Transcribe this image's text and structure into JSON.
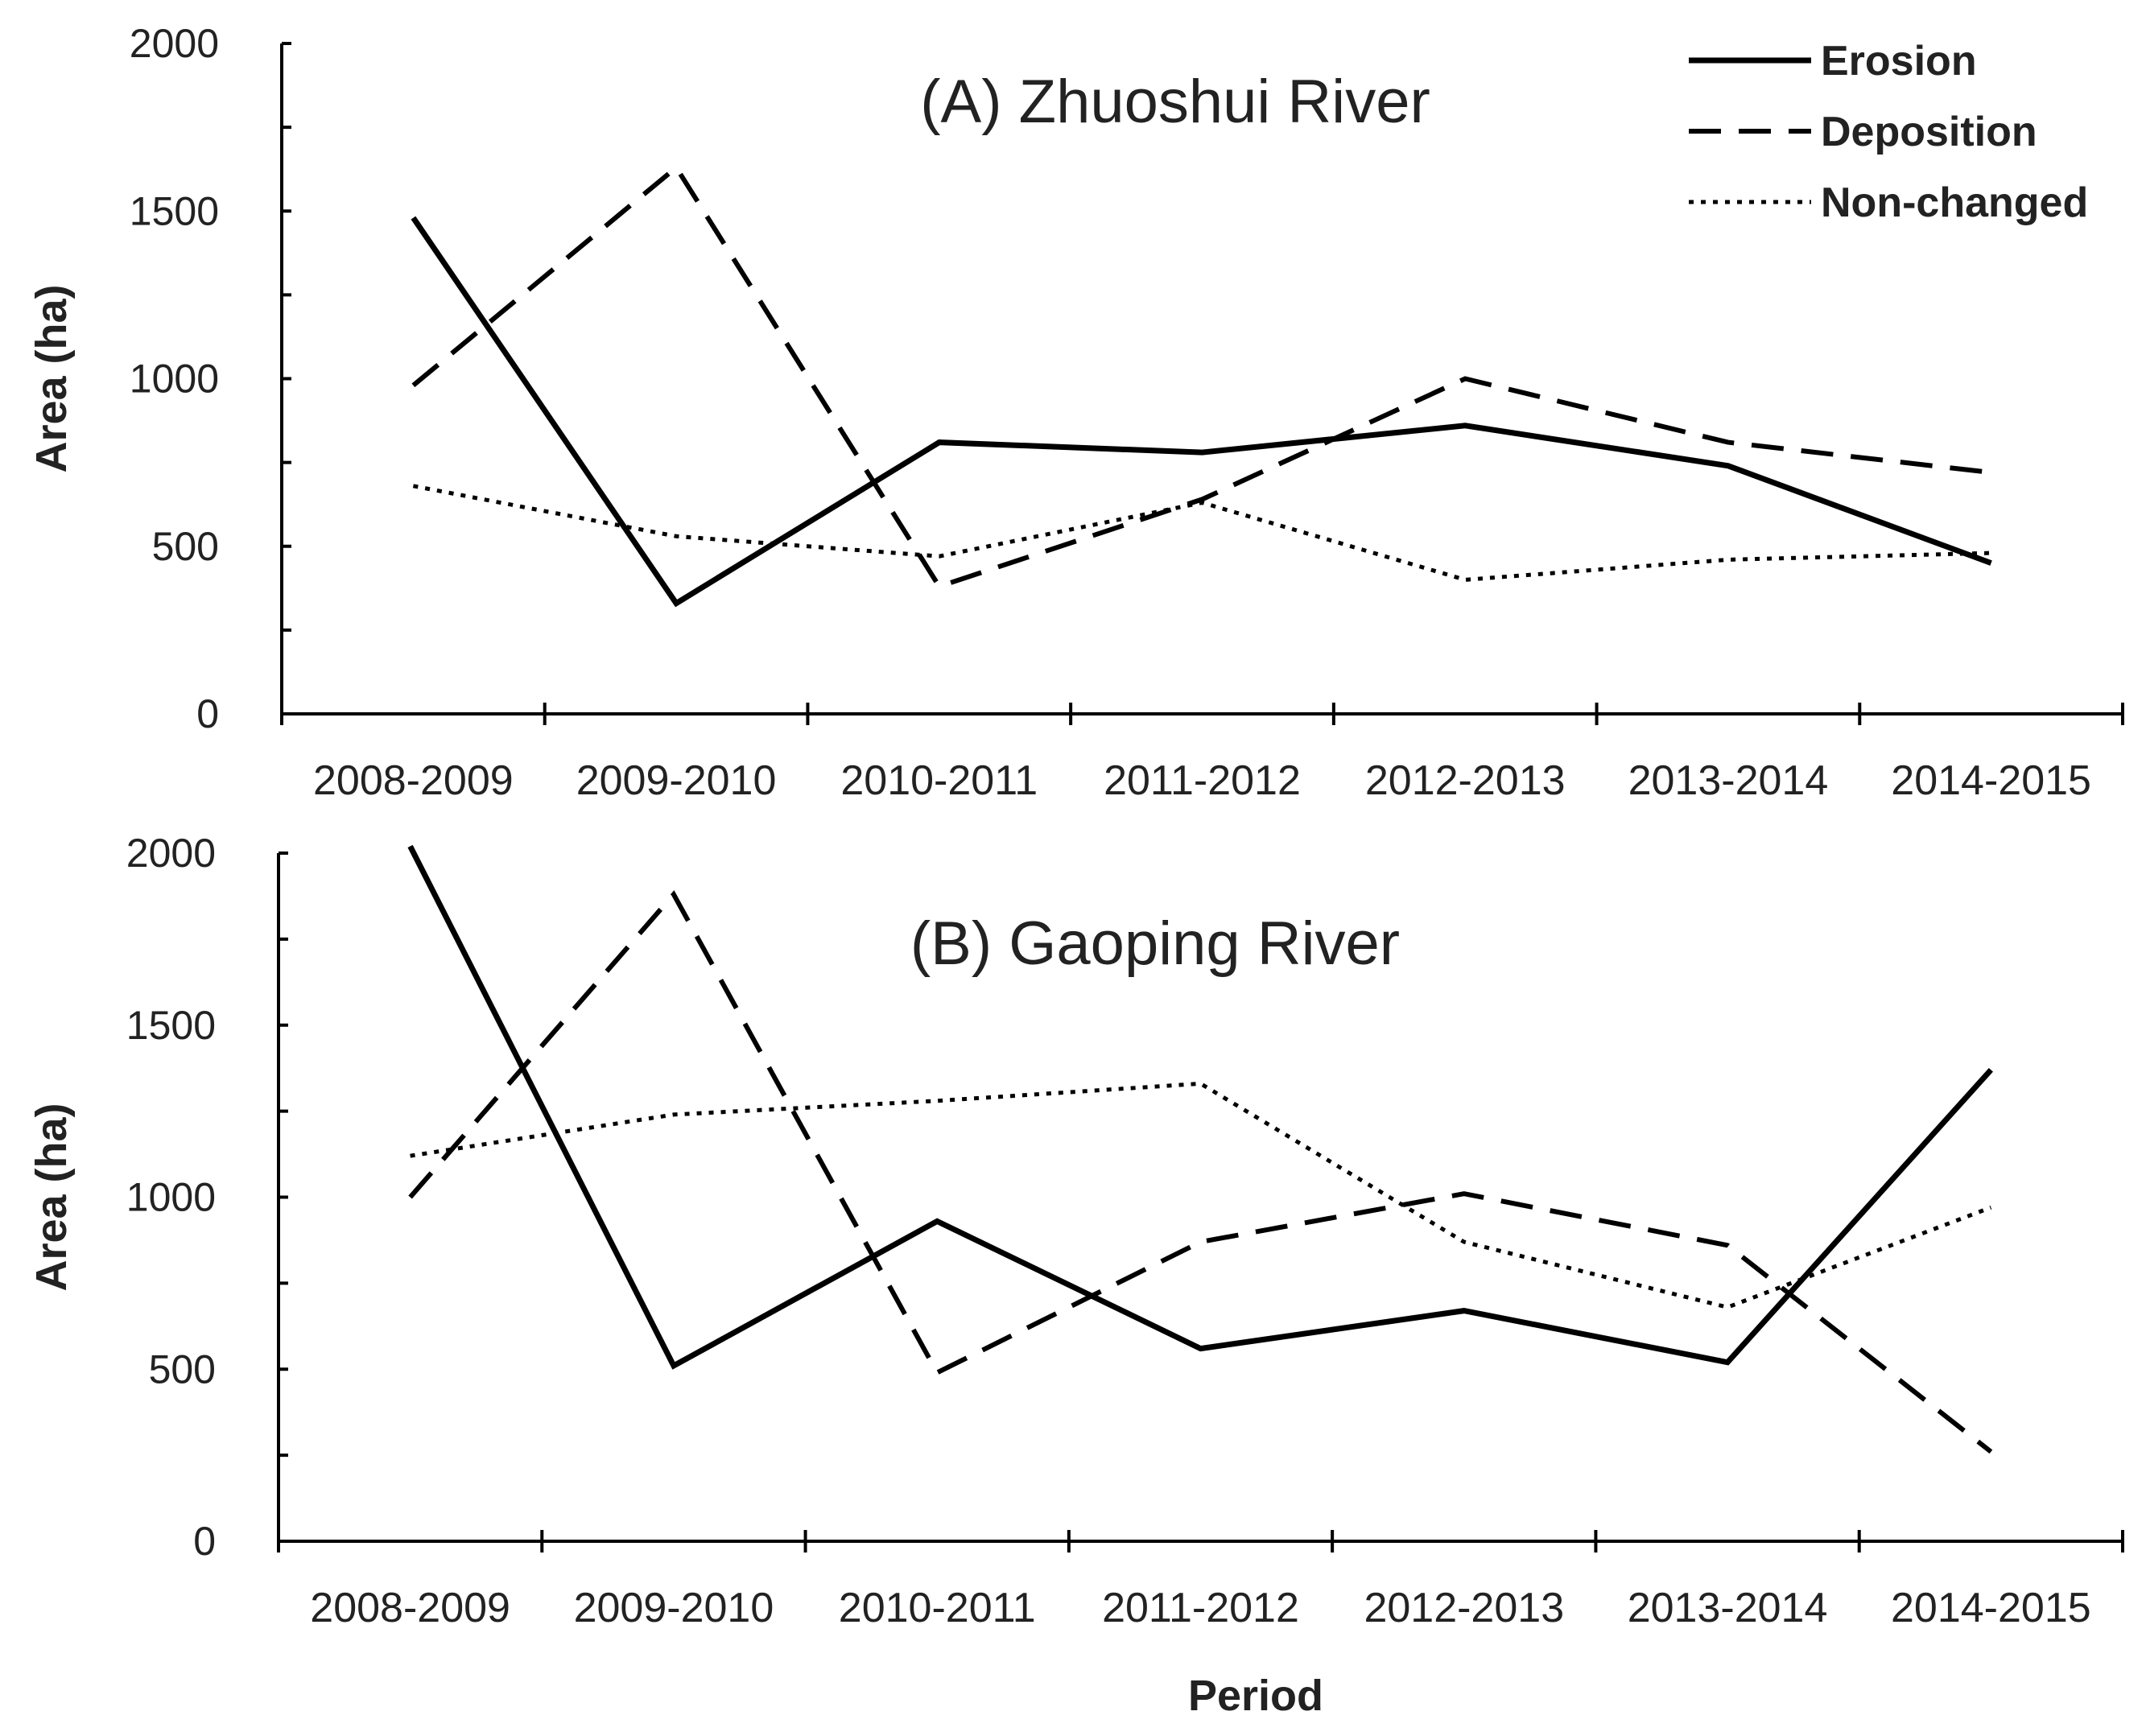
{
  "chart_data": [
    {
      "type": "line",
      "title": "(A) Zhuoshui River",
      "xlabel": "",
      "ylabel": "Area (ha)",
      "ylim": [
        0,
        2000
      ],
      "yticks": [
        0,
        500,
        1000,
        1500,
        2000
      ],
      "categories": [
        "2008-2009",
        "2009-2010",
        "2010-2011",
        "2011-2012",
        "2012-2013",
        "2013-2014",
        "2014-2015"
      ],
      "series": [
        {
          "name": "Erosion",
          "style": "solid",
          "values": [
            1480,
            330,
            810,
            780,
            860,
            740,
            450
          ]
        },
        {
          "name": "Deposition",
          "style": "dashed",
          "values": [
            980,
            1630,
            380,
            640,
            1000,
            810,
            720
          ]
        },
        {
          "name": "Non-changed",
          "style": "dotted",
          "values": [
            680,
            530,
            470,
            630,
            400,
            460,
            480
          ]
        }
      ]
    },
    {
      "type": "line",
      "title": "(B) Gaoping River",
      "xlabel": "Period",
      "ylabel": "Area (ha)",
      "ylim": [
        0,
        2000
      ],
      "yticks": [
        0,
        500,
        1000,
        1500,
        2000
      ],
      "categories": [
        "2008-2009",
        "2009-2010",
        "2010-2011",
        "2011-2012",
        "2012-2013",
        "2013-2014",
        "2014-2015"
      ],
      "series": [
        {
          "name": "Erosion",
          "style": "solid",
          "values": [
            2020,
            510,
            930,
            560,
            670,
            520,
            1370
          ]
        },
        {
          "name": "Deposition",
          "style": "dashed",
          "values": [
            1000,
            1880,
            490,
            870,
            1010,
            860,
            260
          ]
        },
        {
          "name": "Non-changed",
          "style": "dotted",
          "values": [
            1120,
            1240,
            1280,
            1330,
            870,
            680,
            970
          ]
        }
      ]
    }
  ],
  "legend": {
    "items": [
      {
        "label": "Erosion",
        "style": "solid"
      },
      {
        "label": "Deposition",
        "style": "dashed"
      },
      {
        "label": "Non-changed",
        "style": "dotted"
      }
    ]
  },
  "colors": {
    "line": "#000000",
    "text": "#222222",
    "background": "#ffffff"
  }
}
